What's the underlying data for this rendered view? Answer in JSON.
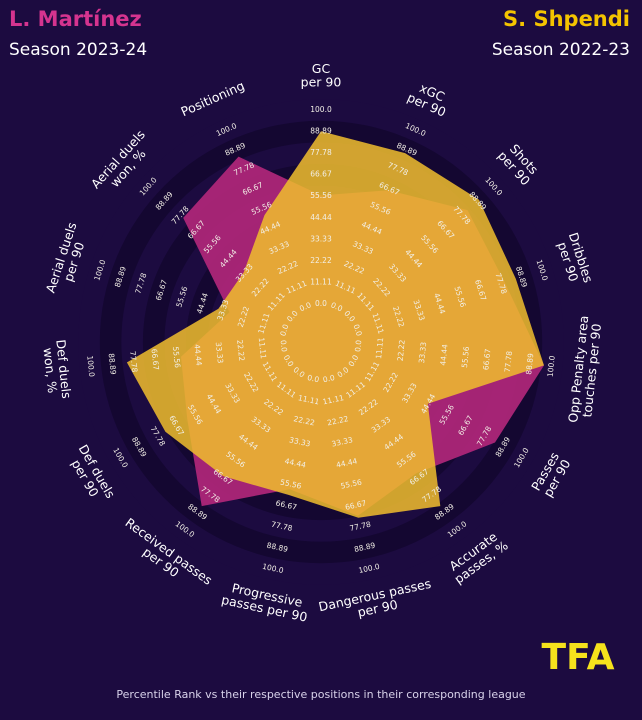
{
  "players": {
    "left": {
      "name": "L. Martínez",
      "season": "Season 2023-24"
    },
    "right": {
      "name": "S. Shpendi",
      "season": "Season 2022-23"
    }
  },
  "footnote": "Percentile Rank vs their respective positions in their corresponding league",
  "logo_text": "TFA",
  "colors": {
    "background": "#1c0b40",
    "ring_dark": "#140731",
    "ring_light": "#1c0b40",
    "left_player": "#d5348f",
    "right_player": "#f4c400",
    "left_fill": "#b1277a",
    "right_fill": "#f0bd2d",
    "overlap_fill": "#e8aa3a",
    "label_text": "#ffffff",
    "ring_text": "#f2efe6"
  },
  "chart_data": {
    "type": "radar",
    "r_range": [
      0,
      100
    ],
    "ring_values": [
      "0.0",
      "11.11",
      "22.22",
      "33.33",
      "44.44",
      "55.56",
      "66.67",
      "77.78",
      "88.89",
      "100.0"
    ],
    "axes": [
      "GC\nper 90",
      "xGC\nper 90",
      "Shots\nper 90",
      "Dribbles\nper 90",
      "Opp Penalty area\ntouches per 90",
      "Passes\nper 90",
      "Accurate\npasses, %",
      "Dangerous passes\nper 90",
      "Progressive\npasses per 90",
      "Received passes\nper 90",
      "Def duels\nper 90",
      "Def duels\nwon, %",
      "Aerial duels\nper 90",
      "Aerial duels\nwon, %",
      "Positioning"
    ],
    "series": [
      {
        "name": "L. Martínez",
        "values": [
          56,
          66,
          82,
          80,
          96,
          84,
          64,
          72,
          58,
          85,
          60,
          53,
          30,
          76,
          85
        ]
      },
      {
        "name": "S. Shpendi",
        "values": [
          89,
          87,
          90,
          86,
          96,
          44,
          85,
          73,
          61,
          66,
          73,
          81,
          36,
          34,
          52
        ]
      }
    ]
  }
}
